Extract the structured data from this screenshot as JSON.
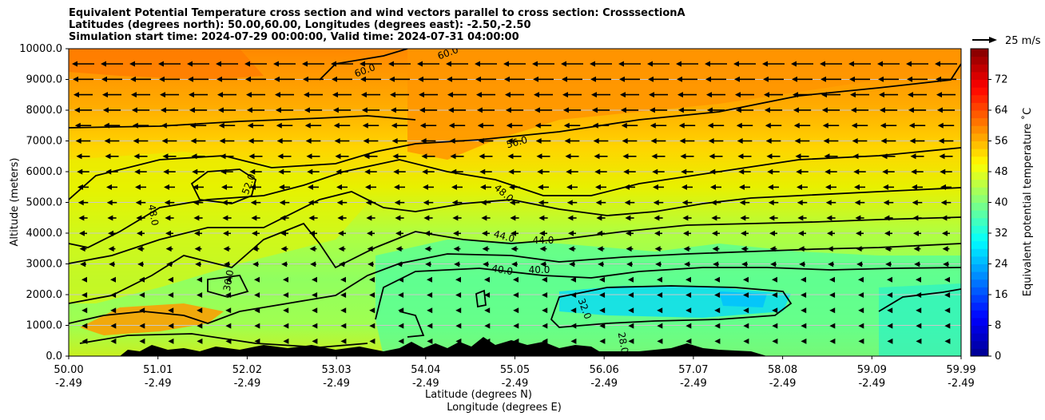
{
  "chart_data": {
    "type": "heatmap",
    "title_lines": [
      "Equivalent Potential Temperature cross section and wind vectors parallel to cross section: CrosssectionA",
      "Latitudes (degrees north): 50.00,60.00, Longitudes (degrees east): -2.50,-2.50",
      "Simulation start time: 2024-07-29 00:00:00, Valid time: 2024-07-31 04:00:00"
    ],
    "ylabel": "Altitude (meters)",
    "xlabel_lines": [
      "Latitude (degrees N)",
      "Longitude (degrees E)"
    ],
    "ylim": [
      0,
      10000
    ],
    "yticks": [
      "0.0",
      "1000.0",
      "2000.0",
      "3000.0",
      "4000.0",
      "5000.0",
      "6000.0",
      "7000.0",
      "8000.0",
      "9000.0",
      "10000.0"
    ],
    "xticks": [
      {
        "lat": "50.00",
        "lon": "-2.49"
      },
      {
        "lat": "51.01",
        "lon": "-2.49"
      },
      {
        "lat": "52.02",
        "lon": "-2.49"
      },
      {
        "lat": "53.03",
        "lon": "-2.49"
      },
      {
        "lat": "54.04",
        "lon": "-2.49"
      },
      {
        "lat": "55.05",
        "lon": "-2.49"
      },
      {
        "lat": "56.06",
        "lon": "-2.49"
      },
      {
        "lat": "57.07",
        "lon": "-2.49"
      },
      {
        "lat": "58.08",
        "lon": "-2.49"
      },
      {
        "lat": "59.09",
        "lon": "-2.49"
      },
      {
        "lat": "59.99",
        "lon": "-2.49"
      }
    ],
    "grid": "horizontal",
    "colorbar": {
      "label": "Equivalent potential temperature ˚C",
      "range": [
        0,
        80
      ],
      "ticks": [
        "0",
        "8",
        "16",
        "24",
        "32",
        "40",
        "48",
        "56",
        "64",
        "72"
      ],
      "colormap": [
        "#00008f",
        "#0000ff",
        "#0080ff",
        "#00ffff",
        "#80ff80",
        "#ffff00",
        "#ff8000",
        "#ff0000",
        "#800000"
      ]
    },
    "wind_key": "25 m/s",
    "contour_labels": [
      "60.0",
      "60.0",
      "56.0",
      "52.0",
      "48.0",
      "48.0",
      "44.0",
      "44.0",
      "40.0",
      "40.0",
      "36.0",
      "32.0",
      "28.0"
    ]
  }
}
